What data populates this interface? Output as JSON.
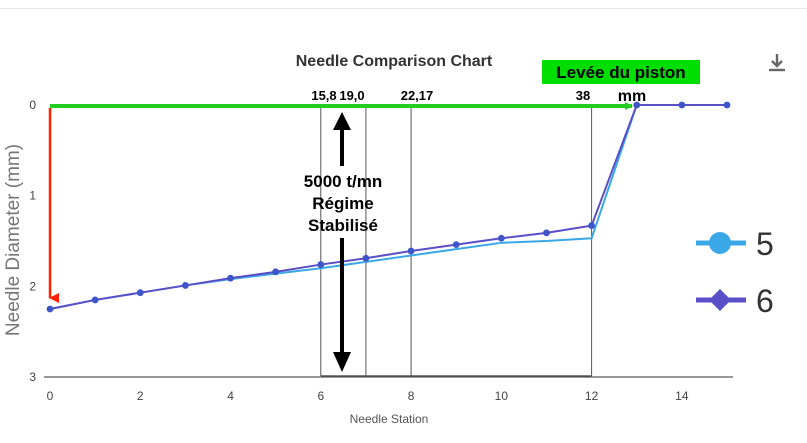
{
  "chart_data": {
    "type": "line",
    "title": "Needle Comparison Chart",
    "xlabel": "Needle Station",
    "ylabel": "Needle Diameter (mm)",
    "xlim": [
      0,
      15
    ],
    "ylim": [
      0,
      3
    ],
    "y_inverted": true,
    "x_ticks": [
      "0",
      "2",
      "4",
      "6",
      "8",
      "10",
      "12",
      "14"
    ],
    "y_ticks": [
      "0",
      "1",
      "2",
      "3"
    ],
    "grid": false,
    "legend_position": "right",
    "series": [
      {
        "name": "5",
        "color": "#3aa8e8",
        "x": [
          0,
          1,
          2,
          3,
          4,
          5,
          6,
          7,
          8,
          9,
          10,
          11,
          12,
          13,
          14,
          15
        ],
        "y": [
          2.25,
          2.15,
          2.07,
          1.99,
          1.92,
          1.86,
          1.8,
          1.73,
          1.66,
          1.59,
          1.52,
          1.5,
          1.47,
          0,
          0,
          0
        ]
      },
      {
        "name": "6",
        "color": "#5b4fc8",
        "x": [
          0,
          1,
          2,
          3,
          4,
          5,
          6,
          7,
          8,
          9,
          10,
          11,
          12,
          13,
          14,
          15
        ],
        "y": [
          2.25,
          2.15,
          2.07,
          1.99,
          1.91,
          1.84,
          1.76,
          1.69,
          1.61,
          1.54,
          1.47,
          1.41,
          1.33,
          0,
          0,
          0
        ]
      }
    ],
    "annotations": {
      "top_labels": [
        "15,8",
        "19,0",
        "22,17",
        "38"
      ],
      "piston_label": "Levée du piston",
      "piston_unit": "mm",
      "regime_lines": [
        "5000 t/mn",
        "Régime",
        "Stabilisé"
      ],
      "piston_color": "#00dd00",
      "arrow_green": "#22cc22",
      "arrow_red": "#ff2200",
      "marker_stations": [
        6,
        7,
        8,
        12
      ]
    }
  }
}
